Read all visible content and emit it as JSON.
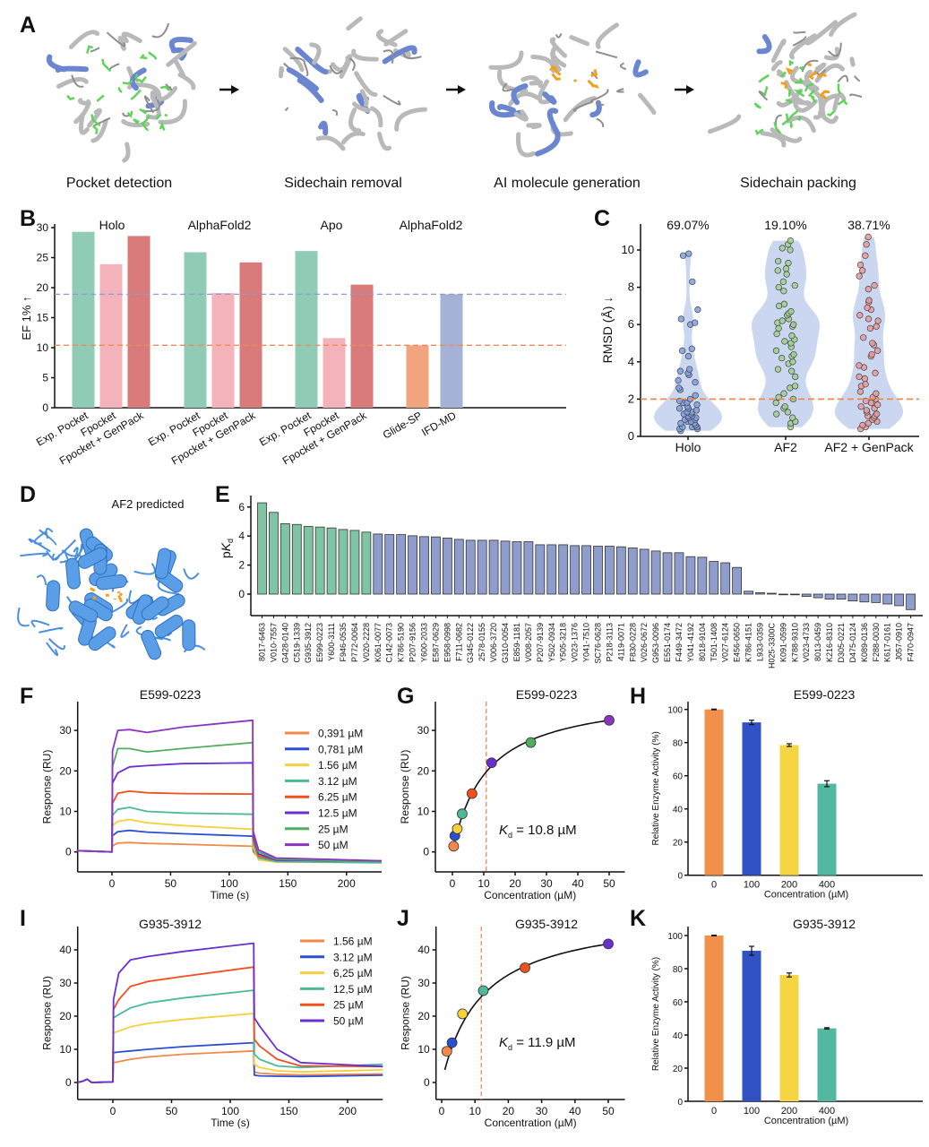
{
  "panel_labels": {
    "A": "A",
    "B": "B",
    "C": "C",
    "D": "D",
    "E": "E",
    "F": "F",
    "G": "G",
    "H": "H",
    "I": "I",
    "J": "J",
    "K": "K"
  },
  "panel_a": {
    "steps": [
      "Pocket detection",
      "Sidechain removal",
      "AI molecule generation",
      "Sidechain packing"
    ],
    "arrow_icon": "arrow-right-icon"
  },
  "panel_d": {
    "label": "AF2 predicted"
  },
  "chart_data": [
    {
      "id": "B",
      "type": "bar",
      "ylabel": "EF 1% ↑",
      "ylim": [
        0,
        30
      ],
      "yticks": [
        0,
        5,
        10,
        15,
        20,
        25,
        30
      ],
      "groups": [
        {
          "title": "Holo",
          "categories": [
            "Exp. Pocket",
            "Fpocket",
            "Fpocket + GenPack"
          ],
          "values": [
            29.3,
            23.9,
            28.6
          ],
          "colors": [
            "#8fcbb5",
            "#f4b3ba",
            "#d97b7b"
          ]
        },
        {
          "title": "AlphaFold2",
          "categories": [
            "Exp. Pocket",
            "Fpocket",
            "Fpocket + GenPack"
          ],
          "values": [
            25.9,
            19.1,
            24.2
          ],
          "colors": [
            "#8fcbb5",
            "#f4b3ba",
            "#d97b7b"
          ]
        },
        {
          "title": "Apo",
          "categories": [
            "Exp. Pocket",
            "Fpocket",
            "Fpocket + GenPack"
          ],
          "values": [
            26.1,
            11.6,
            20.5
          ],
          "colors": [
            "#8fcbb5",
            "#f4b3ba",
            "#d97b7b"
          ]
        },
        {
          "title": "AlphaFold2",
          "categories": [
            "Glide-SP",
            "IFD-MD"
          ],
          "values": [
            10.4,
            18.9
          ],
          "colors": [
            "#f0a57f",
            "#a6b2d4"
          ]
        }
      ],
      "reference_lines": [
        {
          "value": 18.9,
          "color": "#8a9bd6"
        },
        {
          "value": 10.4,
          "color": "#ec8a5c"
        }
      ],
      "grid": false
    },
    {
      "id": "C",
      "type": "violin",
      "ylabel": "RMSD (Å) ↓",
      "ylim": [
        0,
        11
      ],
      "yticks": [
        0,
        2,
        4,
        6,
        8,
        10
      ],
      "threshold": 2,
      "threshold_color": "#f08a4b",
      "violin_color": "#c5d1ee",
      "groups": [
        {
          "name": "Holo",
          "annotation": "69.07%",
          "color": "#7f9fe0",
          "values": [
            0.3,
            0.4,
            0.4,
            0.5,
            0.5,
            0.5,
            0.6,
            0.6,
            0.7,
            0.7,
            0.8,
            0.8,
            0.9,
            0.9,
            1.0,
            1.0,
            1.1,
            1.1,
            1.2,
            1.2,
            1.3,
            1.3,
            1.4,
            1.5,
            1.5,
            1.6,
            1.7,
            1.8,
            1.8,
            1.9,
            2.0,
            2.2,
            2.5,
            2.6,
            2.9,
            3.0,
            3.3,
            3.4,
            3.5,
            3.6,
            4.3,
            4.6,
            4.7,
            6.0,
            6.1,
            6.3,
            6.8,
            8.3,
            9.7,
            9.8
          ]
        },
        {
          "name": "AF2",
          "annotation": "19.10%",
          "color": "#9fd08f",
          "values": [
            0.5,
            0.7,
            0.8,
            1.0,
            1.2,
            1.3,
            1.5,
            1.6,
            1.8,
            2.0,
            2.1,
            2.3,
            2.6,
            2.7,
            3.2,
            3.5,
            3.6,
            3.9,
            4.0,
            4.2,
            4.3,
            4.4,
            4.6,
            4.8,
            5.0,
            5.1,
            5.2,
            5.4,
            5.5,
            5.8,
            5.9,
            6.0,
            6.1,
            6.2,
            6.3,
            6.5,
            6.6,
            6.7,
            7.0,
            7.1,
            7.8,
            8.0,
            8.1,
            8.3,
            8.7,
            8.9,
            9.0,
            9.3,
            9.4,
            10.0,
            10.1,
            10.3,
            10.5
          ]
        },
        {
          "name": "AF2 + GenPack",
          "annotation": "38.71%",
          "color": "#e79a9a",
          "values": [
            0.4,
            0.5,
            0.6,
            0.7,
            0.8,
            0.9,
            1.0,
            1.1,
            1.1,
            1.2,
            1.3,
            1.4,
            1.5,
            1.6,
            1.7,
            1.8,
            1.9,
            2.0,
            2.1,
            2.3,
            2.4,
            2.7,
            2.8,
            3.1,
            3.2,
            3.4,
            3.7,
            3.8,
            4.3,
            4.4,
            4.6,
            4.9,
            5.0,
            5.3,
            5.8,
            5.9,
            6.2,
            6.3,
            6.5,
            6.8,
            6.9,
            7.2,
            7.3,
            7.9,
            8.1,
            8.6,
            8.9,
            9.2,
            9.7,
            10.3,
            10.7
          ]
        }
      ]
    },
    {
      "id": "E",
      "type": "bar",
      "ylabel": "pKd",
      "ylim": [
        -1.4,
        6.8
      ],
      "yticks": [
        0,
        2,
        4,
        6
      ],
      "highlight_color": "#7fc4a4",
      "default_color": "#8e9dcb",
      "highlight_count": 10,
      "categories": [
        "8017-6463",
        "V010-7557",
        "G428-0140",
        "C519-1339",
        "G935-3912",
        "E599-0223",
        "Y600-3111",
        "F946-0535",
        "P772-0064",
        "V020-2228",
        "K061-0077",
        "C142-0073",
        "K786-5190",
        "P207-9156",
        "Y600-2033",
        "E587-0629",
        "E958-0998",
        "F711-0682",
        "G345-0122",
        "2578-0155",
        "V006-3720",
        "G310-0054",
        "E859-1181",
        "V008-2057",
        "P207-9139",
        "Y502-0934",
        "Y505-3218",
        "V023-1376",
        "Y041-7510",
        "SC76-0628",
        "P218-3113",
        "4119-0071",
        "F830-0228",
        "V026-0672",
        "G953-0096",
        "E551-0174",
        "F449-3472",
        "Y041-4192",
        "8018-9104",
        "T501-1408",
        "V027-6124",
        "E456-0650",
        "K786-4151",
        "L933-0359",
        "H025-3300C",
        "K091-0599",
        "K788-9310",
        "V023-4733",
        "8013-0459",
        "K216-8310",
        "D305-0221",
        "D475-0124",
        "K089-0136",
        "F288-0030",
        "K617-0161",
        "J057-0910",
        "F470-0947"
      ],
      "values": [
        6.29,
        5.63,
        4.85,
        4.8,
        4.66,
        4.62,
        4.56,
        4.45,
        4.39,
        4.27,
        4.14,
        4.1,
        4.1,
        4.02,
        3.96,
        3.94,
        3.86,
        3.77,
        3.71,
        3.71,
        3.71,
        3.65,
        3.61,
        3.61,
        3.4,
        3.4,
        3.4,
        3.34,
        3.34,
        3.3,
        3.3,
        3.26,
        3.18,
        3.09,
        2.97,
        2.85,
        2.85,
        2.58,
        2.54,
        2.25,
        2.16,
        1.84,
        0.2,
        0.1,
        0.06,
        -0.02,
        -0.04,
        -0.16,
        -0.25,
        -0.35,
        -0.35,
        -0.47,
        -0.54,
        -0.58,
        -0.68,
        -0.8,
        -1.07
      ]
    },
    {
      "id": "F",
      "type": "line",
      "title": "E599-0223",
      "xlabel": "Time (s)",
      "ylabel": "Response (RU)",
      "xlim": [
        -30,
        230
      ],
      "ylim": [
        -5,
        36
      ],
      "xticks": [
        0,
        50,
        100,
        150,
        200
      ],
      "yticks": [
        0,
        10,
        20,
        30
      ],
      "t": [
        -30,
        0,
        0.5,
        5,
        15,
        30,
        60,
        120,
        120.5,
        125,
        140,
        230
      ],
      "series": [
        {
          "name": "0,391 µM",
          "color": "#f0894a",
          "values": [
            0.3,
            0,
            1.5,
            2.2,
            2.3,
            2.1,
            1.9,
            1.4,
            0,
            -1.5,
            -2,
            -2.2
          ]
        },
        {
          "name": "0,781 µM",
          "color": "#2a4fd0",
          "values": [
            0.3,
            0,
            4,
            5,
            5.3,
            4.9,
            4.5,
            3.9,
            0.5,
            -1.5,
            -2.2,
            -2.4
          ]
        },
        {
          "name": "1.56 µM",
          "color": "#f6cf3a",
          "values": [
            0.3,
            0,
            6.5,
            7.5,
            8.0,
            7.2,
            6.5,
            5.6,
            1,
            -2,
            -2.5,
            -2.6
          ]
        },
        {
          "name": "3.12 µM",
          "color": "#4db89a",
          "values": [
            0.3,
            0,
            9,
            10.5,
            11,
            10,
            9.6,
            9.3,
            2,
            -1.5,
            -2.4,
            -2.7
          ]
        },
        {
          "name": "6.25 µM",
          "color": "#f0501e",
          "values": [
            0.3,
            0,
            12,
            14.5,
            15,
            14.6,
            14.4,
            14.3,
            3,
            -1,
            -2,
            -2.3
          ]
        },
        {
          "name": "12.5 µM",
          "color": "#6a2fd0",
          "values": [
            0.3,
            0,
            17,
            19.5,
            21,
            21.3,
            21.8,
            22,
            4,
            -0.5,
            -2,
            -2.3
          ]
        },
        {
          "name": "25 µM",
          "color": "#4fae5e",
          "values": [
            0.3,
            0,
            21,
            25.5,
            25.5,
            24.7,
            25.5,
            27,
            5,
            0,
            -1.8,
            -2.4
          ]
        },
        {
          "name": "50 µM",
          "color": "#8a34c4",
          "values": [
            0.3,
            0,
            25,
            30,
            30.2,
            29.5,
            30.8,
            32.5,
            5,
            0.5,
            -1.5,
            -2.2
          ]
        }
      ]
    },
    {
      "id": "G",
      "type": "scatter",
      "title": "E599-0223",
      "xlabel": "Concentration (µM)",
      "ylabel": "Response (RU)",
      "xlim": [
        -5,
        55
      ],
      "ylim": [
        -5,
        36
      ],
      "xticks": [
        0,
        10,
        20,
        30,
        40,
        50
      ],
      "yticks": [
        0,
        10,
        20,
        30
      ],
      "kd": 10.8,
      "kd_label": "K",
      "kd_sub": "d",
      "kd_text": " = 10.8 µM",
      "x": [
        0.391,
        0.781,
        1.56,
        3.12,
        6.25,
        12.5,
        25,
        50
      ],
      "y": [
        1.4,
        4.0,
        5.7,
        9.4,
        14.4,
        22.0,
        27.0,
        32.5
      ],
      "colors": [
        "#f0894a",
        "#2a4fd0",
        "#f6cf3a",
        "#4db89a",
        "#f0501e",
        "#6a2fd0",
        "#4fae5e",
        "#8a34c4"
      ]
    },
    {
      "id": "H",
      "type": "bar",
      "title": "E599-0223",
      "xlabel": "Concentration (µM)",
      "ylabel": "Relative Enzyme Activity (%)",
      "ylim": [
        0,
        105
      ],
      "yticks": [
        0,
        20,
        40,
        60,
        80,
        100
      ],
      "categories": [
        "0",
        "100",
        "200",
        "400"
      ],
      "values": [
        100,
        92.2,
        78.5,
        55.2
      ],
      "errors": [
        0.2,
        1.3,
        0.8,
        1.8
      ],
      "colors": [
        "#f0904a",
        "#3152c4",
        "#f6d545",
        "#52b8a0"
      ]
    },
    {
      "id": "I",
      "type": "line",
      "title": "G935-3912",
      "xlabel": "Time (s)",
      "ylabel": "Response (RU)",
      "xlim": [
        -30,
        230
      ],
      "ylim": [
        -5,
        47
      ],
      "xticks": [
        0,
        50,
        100,
        150,
        200
      ],
      "yticks": [
        0,
        10,
        20,
        30,
        40
      ],
      "t": [
        -30,
        -25,
        -22,
        -18,
        0,
        0.5,
        5,
        15,
        30,
        60,
        120,
        120.5,
        125,
        140,
        160,
        230
      ],
      "series": [
        {
          "name": "1.56 µM",
          "color": "#f0894a",
          "values": [
            0,
            0.5,
            1,
            0,
            0.2,
            6,
            6.3,
            7,
            7.7,
            8.5,
            9.5,
            3.2,
            2.8,
            2.5,
            2.3,
            2.6
          ]
        },
        {
          "name": "3.12 µM",
          "color": "#2a4fd0",
          "values": [
            0,
            0.5,
            1,
            0,
            0.2,
            9,
            9.2,
            9.5,
            10,
            10.8,
            12,
            2.2,
            2,
            1.9,
            1.8,
            2.2
          ]
        },
        {
          "name": "6,25 µM",
          "color": "#f6cf3a",
          "values": [
            0,
            0.5,
            1,
            0,
            0.2,
            15,
            15.5,
            16.8,
            17.8,
            19,
            20.8,
            5.5,
            4.5,
            3.5,
            3.2,
            3.8
          ]
        },
        {
          "name": "12,5 µM",
          "color": "#4db89a",
          "values": [
            0,
            0.5,
            1,
            0,
            0.2,
            19.5,
            20.5,
            22.5,
            24,
            25.5,
            27.8,
            8.5,
            7,
            5,
            4.5,
            5.5
          ]
        },
        {
          "name": "25 µM",
          "color": "#f0501e",
          "values": [
            0,
            0.5,
            1,
            0,
            0.2,
            22,
            25,
            29,
            30.5,
            32,
            34.8,
            13,
            11,
            7,
            5,
            4.8
          ]
        },
        {
          "name": "50 µM",
          "color": "#6a2fd0",
          "values": [
            0,
            0.5,
            1,
            0,
            0.2,
            25,
            33,
            37,
            38,
            39.5,
            42,
            19.5,
            17,
            10,
            6,
            4.8
          ]
        }
      ]
    },
    {
      "id": "J",
      "type": "scatter",
      "title": "G935-3912",
      "xlabel": "Concentration (µM)",
      "ylabel": "Response (RU)",
      "xlim": [
        -2,
        55
      ],
      "ylim": [
        -5,
        47
      ],
      "xticks": [
        0,
        10,
        20,
        30,
        40,
        50
      ],
      "yticks": [
        0,
        10,
        20,
        30,
        40
      ],
      "kd": 11.9,
      "kd_label": "K",
      "kd_sub": "d",
      "kd_text": " = 11.9 µM",
      "x": [
        1.56,
        3.12,
        6.25,
        12.5,
        25,
        50
      ],
      "y": [
        9.4,
        12.0,
        20.7,
        27.7,
        34.6,
        41.8
      ],
      "colors": [
        "#f0894a",
        "#2a4fd0",
        "#f6cf3a",
        "#4db89a",
        "#f0501e",
        "#6a2fd0"
      ]
    },
    {
      "id": "K",
      "type": "bar",
      "title": "G935-3912",
      "xlabel": "Concentration (µM)",
      "ylabel": "Relative Enzyme Activity (%)",
      "ylim": [
        0,
        105
      ],
      "yticks": [
        0,
        20,
        40,
        60,
        80,
        100
      ],
      "categories": [
        "0",
        "100",
        "200",
        "400"
      ],
      "values": [
        100,
        90.8,
        76.2,
        44.0
      ],
      "errors": [
        0.2,
        2.7,
        1.2,
        0.4
      ],
      "colors": [
        "#f0904a",
        "#3152c4",
        "#f6d545",
        "#52b8a0"
      ]
    }
  ]
}
